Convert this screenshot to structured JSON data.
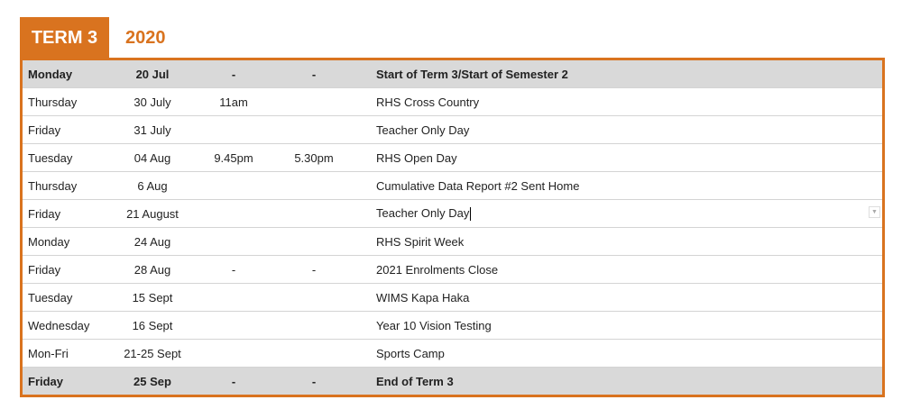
{
  "header": {
    "term": "TERM 3",
    "year": "2020"
  },
  "colors": {
    "accent": "#d9731f",
    "highlight_row": "#d9d9d9"
  },
  "rows": [
    {
      "day": "Monday",
      "date": "20 Jul",
      "start": "-",
      "end": "-",
      "event": "Start of Term 3/Start of Semester 2",
      "highlight": true
    },
    {
      "day": "Thursday",
      "date": "30 July",
      "start": "11am",
      "end": "",
      "event": "RHS Cross Country"
    },
    {
      "day": "Friday",
      "date": "31 July",
      "start": "",
      "end": "",
      "event": "Teacher Only Day"
    },
    {
      "day": "Tuesday",
      "date": "04 Aug",
      "start": "9.45pm",
      "end": "5.30pm",
      "event": "RHS Open Day"
    },
    {
      "day": "Thursday",
      "date": "6 Aug",
      "start": "",
      "end": "",
      "event": "Cumulative Data Report #2 Sent Home"
    },
    {
      "day": "Friday",
      "date": "21 August",
      "start": "",
      "end": "",
      "event": "Teacher Only Day"
    },
    {
      "day": "Monday",
      "date": "24 Aug",
      "start": "",
      "end": "",
      "event": "RHS Spirit Week"
    },
    {
      "day": "Friday",
      "date": "28 Aug",
      "start": "-",
      "end": "-",
      "event": "2021 Enrolments Close"
    },
    {
      "day": "Tuesday",
      "date": "15 Sept",
      "start": "",
      "end": "",
      "event": "WIMS Kapa Haka"
    },
    {
      "day": "Wednesday",
      "date": "16 Sept",
      "start": "",
      "end": "",
      "event": "Year 10 Vision Testing"
    },
    {
      "day": "Mon-Fri",
      "date": "21-25 Sept",
      "start": "",
      "end": "",
      "event": "Sports Camp"
    },
    {
      "day": "Friday",
      "date": "25 Sep",
      "start": "-",
      "end": "-",
      "event": "End of Term 3",
      "highlight": true
    }
  ]
}
